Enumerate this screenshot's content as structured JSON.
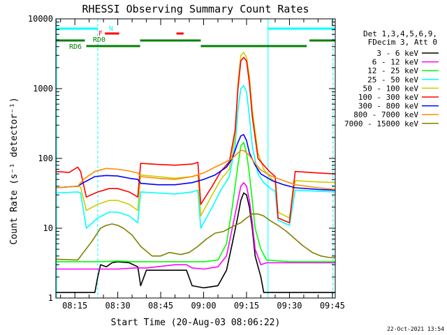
{
  "chart_data": {
    "type": "line",
    "title": "RHESSI Observing Summary Count Rates",
    "xlabel": "Start Time (20-Aug-03 08:06:22)",
    "ylabel": "Count Rate (s⁻¹ detector⁻¹)",
    "y_scale": "log",
    "ylim": [
      1,
      10000
    ],
    "x_range_minutes": [
      488.37,
      586.0
    ],
    "x_ticks": [
      {
        "label": "08:15",
        "minute": 495
      },
      {
        "label": "08:30",
        "minute": 510
      },
      {
        "label": "08:45",
        "minute": 525
      },
      {
        "label": "09:00",
        "minute": 540
      },
      {
        "label": "09:15",
        "minute": 555
      },
      {
        "label": "09:30",
        "minute": 570
      },
      {
        "label": "09:45",
        "minute": 585
      }
    ],
    "y_ticks": [
      {
        "label": "1",
        "value": 1
      },
      {
        "label": "10",
        "value": 10
      },
      {
        "label": "100",
        "value": 100
      },
      {
        "label": "1000",
        "value": 1000
      },
      {
        "label": "10000",
        "value": 10000
      }
    ],
    "legend_title": [
      "Det 1,3,4,5,6,9,",
      "FDecim 3, Att 0"
    ],
    "series": [
      {
        "name": "3 - 6 keV",
        "color": "#000000",
        "points": [
          [
            488.4,
            1.2
          ],
          [
            502,
            1.2
          ],
          [
            503,
            2
          ],
          [
            504,
            3
          ],
          [
            506,
            2.8
          ],
          [
            508,
            3.2
          ],
          [
            510,
            3.3
          ],
          [
            514,
            3.2
          ],
          [
            517,
            2.8
          ],
          [
            518,
            1.5
          ],
          [
            520,
            2.5
          ],
          [
            530,
            2.5
          ],
          [
            534,
            2.5
          ],
          [
            536,
            1.5
          ],
          [
            540,
            1.4
          ],
          [
            545,
            1.5
          ],
          [
            548,
            2.5
          ],
          [
            550,
            6
          ],
          [
            552,
            15
          ],
          [
            553,
            25
          ],
          [
            554,
            32
          ],
          [
            555,
            30
          ],
          [
            556,
            20
          ],
          [
            557,
            10
          ],
          [
            558,
            4
          ],
          [
            560,
            2
          ],
          [
            561,
            1.2
          ],
          [
            586,
            1.2
          ]
        ]
      },
      {
        "name": "6 - 12 keV",
        "color": "#ff00ff",
        "points": [
          [
            488.4,
            2.6
          ],
          [
            510,
            2.6
          ],
          [
            516,
            2.7
          ],
          [
            520,
            2.7
          ],
          [
            530,
            3
          ],
          [
            534,
            3
          ],
          [
            536,
            2.7
          ],
          [
            540,
            2.6
          ],
          [
            545,
            2.8
          ],
          [
            548,
            4
          ],
          [
            550,
            10
          ],
          [
            552,
            25
          ],
          [
            553,
            40
          ],
          [
            554,
            45
          ],
          [
            555,
            40
          ],
          [
            556,
            25
          ],
          [
            557,
            12
          ],
          [
            558,
            5
          ],
          [
            560,
            3
          ],
          [
            562,
            3.2
          ],
          [
            586,
            3.2
          ]
        ]
      },
      {
        "name": "12 - 25 keV",
        "color": "#00ff00",
        "points": [
          [
            488.4,
            3.3
          ],
          [
            504,
            3.3
          ],
          [
            510,
            3.4
          ],
          [
            516,
            3.3
          ],
          [
            520,
            3.3
          ],
          [
            530,
            3.3
          ],
          [
            534,
            3.3
          ],
          [
            540,
            3.3
          ],
          [
            545,
            3.5
          ],
          [
            548,
            6
          ],
          [
            550,
            20
          ],
          [
            552,
            80
          ],
          [
            553,
            150
          ],
          [
            554,
            170
          ],
          [
            555,
            120
          ],
          [
            556,
            60
          ],
          [
            557,
            25
          ],
          [
            558,
            10
          ],
          [
            560,
            5
          ],
          [
            562,
            3.5
          ],
          [
            570,
            3.3
          ],
          [
            586,
            3.3
          ]
        ]
      },
      {
        "name": "25 - 50 keV",
        "color": "#00ffff",
        "points": [
          [
            488.4,
            32
          ],
          [
            496,
            33
          ],
          [
            497,
            32
          ],
          [
            499,
            10
          ],
          [
            503,
            14
          ],
          [
            507,
            17
          ],
          [
            510,
            17
          ],
          [
            514,
            15
          ],
          [
            517,
            12
          ],
          [
            518,
            33
          ],
          [
            524,
            32
          ],
          [
            530,
            31
          ],
          [
            536,
            33
          ],
          [
            538,
            35
          ],
          [
            539,
            10
          ],
          [
            543,
            20
          ],
          [
            546,
            35
          ],
          [
            549,
            55
          ],
          [
            551,
            150
          ],
          [
            552,
            500
          ],
          [
            553,
            1000
          ],
          [
            554,
            1100
          ],
          [
            555,
            900
          ],
          [
            556,
            400
          ],
          [
            557,
            150
          ],
          [
            559,
            60
          ],
          [
            561,
            45
          ],
          [
            563,
            38
          ],
          [
            565,
            34
          ],
          [
            566,
            13
          ],
          [
            570,
            11
          ],
          [
            572,
            35
          ],
          [
            580,
            34
          ],
          [
            586,
            33
          ]
        ]
      },
      {
        "name": "50 - 100 keV",
        "color": "#cccc00",
        "points": [
          [
            488.4,
            38
          ],
          [
            496,
            40
          ],
          [
            497,
            39
          ],
          [
            499,
            18
          ],
          [
            503,
            22
          ],
          [
            507,
            25
          ],
          [
            510,
            25
          ],
          [
            514,
            22
          ],
          [
            517,
            18
          ],
          [
            518,
            58
          ],
          [
            524,
            55
          ],
          [
            530,
            52
          ],
          [
            536,
            55
          ],
          [
            538,
            58
          ],
          [
            539,
            15
          ],
          [
            543,
            30
          ],
          [
            546,
            50
          ],
          [
            549,
            70
          ],
          [
            551,
            200
          ],
          [
            552,
            1200
          ],
          [
            553,
            3000
          ],
          [
            554,
            3300
          ],
          [
            555,
            2800
          ],
          [
            556,
            1500
          ],
          [
            557,
            500
          ],
          [
            559,
            120
          ],
          [
            561,
            70
          ],
          [
            563,
            55
          ],
          [
            565,
            45
          ],
          [
            566,
            17
          ],
          [
            570,
            14
          ],
          [
            572,
            48
          ],
          [
            580,
            46
          ],
          [
            586,
            45
          ]
        ]
      },
      {
        "name": "100 - 300 keV",
        "color": "#ff0000",
        "points": [
          [
            488.4,
            65
          ],
          [
            493,
            63
          ],
          [
            496,
            75
          ],
          [
            497,
            65
          ],
          [
            499,
            28
          ],
          [
            503,
            33
          ],
          [
            507,
            37
          ],
          [
            510,
            37
          ],
          [
            514,
            33
          ],
          [
            517,
            28
          ],
          [
            518,
            85
          ],
          [
            524,
            82
          ],
          [
            530,
            80
          ],
          [
            536,
            83
          ],
          [
            538,
            88
          ],
          [
            539,
            22
          ],
          [
            543,
            40
          ],
          [
            546,
            65
          ],
          [
            549,
            90
          ],
          [
            551,
            250
          ],
          [
            552,
            1000
          ],
          [
            553,
            2500
          ],
          [
            554,
            2800
          ],
          [
            555,
            2500
          ],
          [
            556,
            1200
          ],
          [
            557,
            400
          ],
          [
            559,
            100
          ],
          [
            561,
            80
          ],
          [
            563,
            65
          ],
          [
            565,
            55
          ],
          [
            566,
            14
          ],
          [
            570,
            12
          ],
          [
            572,
            65
          ],
          [
            580,
            62
          ],
          [
            586,
            60
          ]
        ]
      },
      {
        "name": "300 - 800 keV",
        "color": "#0000ff",
        "points": [
          [
            488.4,
            38
          ],
          [
            496,
            40
          ],
          [
            498,
            45
          ],
          [
            502,
            55
          ],
          [
            506,
            57
          ],
          [
            510,
            56
          ],
          [
            514,
            52
          ],
          [
            517,
            50
          ],
          [
            518,
            44
          ],
          [
            524,
            42
          ],
          [
            530,
            42
          ],
          [
            536,
            45
          ],
          [
            540,
            50
          ],
          [
            544,
            58
          ],
          [
            548,
            75
          ],
          [
            550,
            100
          ],
          [
            552,
            170
          ],
          [
            553,
            210
          ],
          [
            554,
            220
          ],
          [
            555,
            180
          ],
          [
            556,
            120
          ],
          [
            558,
            80
          ],
          [
            560,
            60
          ],
          [
            564,
            48
          ],
          [
            568,
            42
          ],
          [
            572,
            38
          ],
          [
            580,
            36
          ],
          [
            586,
            35
          ]
        ]
      },
      {
        "name": "800 - 7000 keV",
        "color": "#ff8c00",
        "points": [
          [
            488.4,
            38
          ],
          [
            496,
            40
          ],
          [
            498,
            50
          ],
          [
            502,
            65
          ],
          [
            506,
            72
          ],
          [
            510,
            70
          ],
          [
            514,
            66
          ],
          [
            517,
            62
          ],
          [
            518,
            55
          ],
          [
            524,
            52
          ],
          [
            530,
            50
          ],
          [
            536,
            55
          ],
          [
            540,
            62
          ],
          [
            544,
            75
          ],
          [
            548,
            90
          ],
          [
            550,
            100
          ],
          [
            552,
            120
          ],
          [
            553,
            130
          ],
          [
            554,
            130
          ],
          [
            555,
            120
          ],
          [
            556,
            110
          ],
          [
            558,
            85
          ],
          [
            560,
            68
          ],
          [
            564,
            55
          ],
          [
            568,
            48
          ],
          [
            572,
            42
          ],
          [
            580,
            38
          ],
          [
            586,
            36
          ]
        ]
      },
      {
        "name": "7000 - 15000 keV",
        "color": "#808000",
        "points": [
          [
            488.4,
            3.6
          ],
          [
            496,
            3.5
          ],
          [
            498,
            4.5
          ],
          [
            501,
            6.5
          ],
          [
            504,
            10
          ],
          [
            506,
            11
          ],
          [
            508,
            11.5
          ],
          [
            510,
            11
          ],
          [
            512,
            10
          ],
          [
            515,
            8
          ],
          [
            518,
            5.5
          ],
          [
            522,
            4
          ],
          [
            525,
            4
          ],
          [
            528,
            4.5
          ],
          [
            532,
            4.2
          ],
          [
            535,
            4.5
          ],
          [
            538,
            5.5
          ],
          [
            541,
            7
          ],
          [
            544,
            8.5
          ],
          [
            547,
            9
          ],
          [
            549,
            10
          ],
          [
            551,
            11
          ],
          [
            553,
            12
          ],
          [
            555,
            14
          ],
          [
            557,
            16
          ],
          [
            559,
            16
          ],
          [
            561,
            15
          ],
          [
            563,
            13
          ],
          [
            566,
            11
          ],
          [
            569,
            9
          ],
          [
            572,
            7
          ],
          [
            575,
            5.5
          ],
          [
            578,
            4.5
          ],
          [
            581,
            4
          ],
          [
            584,
            3.8
          ],
          [
            586,
            3.8
          ]
        ]
      }
    ],
    "annotations": {
      "N": {
        "label": "N",
        "color": "#00ffff",
        "intervals": [
          [
            488.4,
            503.0
          ],
          [
            562.5,
            586.0
          ]
        ]
      },
      "F": {
        "label": "F",
        "color": "#ff0000",
        "intervals": [
          [
            505.5,
            510.5
          ],
          [
            530.5,
            533.0
          ]
        ]
      },
      "RD0": {
        "label": "RD0",
        "color": "#008000",
        "intervals": [
          [
            488.4,
            498.5
          ],
          [
            517.8,
            539.0
          ],
          [
            577.0,
            586.0
          ]
        ]
      },
      "RD6": {
        "label": "RD6",
        "color": "#008000",
        "intervals": [
          [
            499.0,
            517.8
          ],
          [
            539.0,
            576.0
          ]
        ]
      }
    },
    "vlines": [
      {
        "minute": 488.6,
        "style": "solid",
        "color": "#00ffff"
      },
      {
        "minute": 503.0,
        "style": "dashed",
        "color": "#00ffff"
      },
      {
        "minute": 562.5,
        "style": "solid",
        "color": "#00ffff"
      },
      {
        "minute": 585.2,
        "style": "dashed",
        "color": "#00ffff"
      }
    ],
    "timestamp": "22-Oct-2021 13:54"
  }
}
